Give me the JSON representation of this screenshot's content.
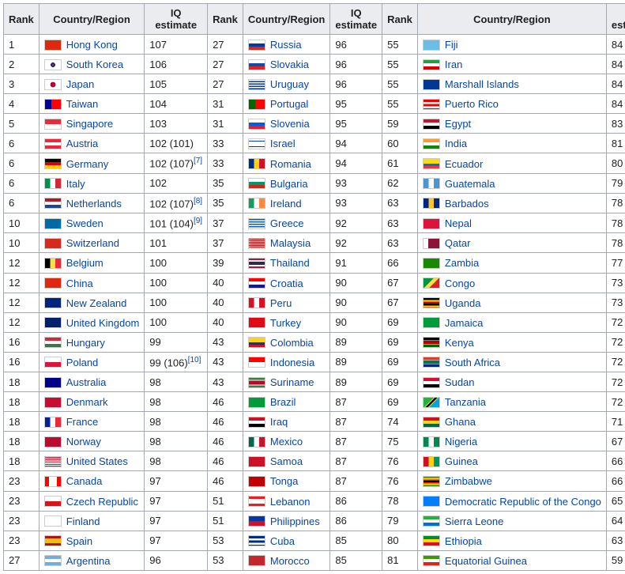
{
  "headers": {
    "rank": "Rank",
    "country": "Country/Region",
    "iq": "IQ estimate"
  },
  "link_color": "#0645ad",
  "border_color": "#a2a9b1",
  "header_bg": "#eaecf0",
  "cell_bg": "#ffffff",
  "columns": [
    [
      {
        "rank": "1",
        "country": "Hong Kong",
        "iq": "107",
        "ref": "",
        "flag": "linear-gradient(#de2910,#de2910)"
      },
      {
        "rank": "2",
        "country": "South Korea",
        "iq": "106",
        "ref": "",
        "flag": "radial-gradient(circle at 50% 50%, #c60c30 0 15%, #003478 15% 25%, #fff 25%)"
      },
      {
        "rank": "3",
        "country": "Japan",
        "iq": "105",
        "ref": "",
        "flag": "radial-gradient(circle at 50% 50%, #bc002d 0 28%, #fff 28%)"
      },
      {
        "rank": "4",
        "country": "Taiwan",
        "iq": "104",
        "ref": "",
        "flag": "linear-gradient(to right,#000095 0 40%,#fe0000 40%),linear-gradient(#fe0000,#fe0000)"
      },
      {
        "rank": "5",
        "country": "Singapore",
        "iq": "103",
        "ref": "",
        "flag": "linear-gradient(#ed2939 0 50%, #fff 50%)"
      },
      {
        "rank": "6",
        "country": "Austria",
        "iq": "102 (101)",
        "ref": "",
        "flag": "linear-gradient(#ed2939 0 33%, #fff 33% 66%, #ed2939 66%)"
      },
      {
        "rank": "6",
        "country": "Germany",
        "iq": "102 (107)",
        "ref": "[7]",
        "flag": "linear-gradient(#000 0 33%, #dd0000 33% 66%, #ffce00 66%)"
      },
      {
        "rank": "6",
        "country": "Italy",
        "iq": "102",
        "ref": "",
        "flag": "linear-gradient(to right,#009246 0 33%, #fff 33% 66%, #ce2b37 66%)"
      },
      {
        "rank": "6",
        "country": "Netherlands",
        "iq": "102 (107)",
        "ref": "[8]",
        "flag": "linear-gradient(#ae1c28 0 33%, #fff 33% 66%, #21468b 66%)"
      },
      {
        "rank": "10",
        "country": "Sweden",
        "iq": "101 (104)",
        "ref": "[9]",
        "flag": "linear-gradient(#006aa7,#006aa7)"
      },
      {
        "rank": "10",
        "country": "Switzerland",
        "iq": "101",
        "ref": "",
        "flag": "linear-gradient(#d52b1e,#d52b1e)"
      },
      {
        "rank": "12",
        "country": "Belgium",
        "iq": "100",
        "ref": "",
        "flag": "linear-gradient(to right,#000 0 33%, #fae042 33% 66%, #ed2939 66%)"
      },
      {
        "rank": "12",
        "country": "China",
        "iq": "100",
        "ref": "",
        "flag": "linear-gradient(#de2910,#de2910)"
      },
      {
        "rank": "12",
        "country": "New Zealand",
        "iq": "100",
        "ref": "",
        "flag": "linear-gradient(#00247d,#00247d)"
      },
      {
        "rank": "12",
        "country": "United Kingdom",
        "iq": "100",
        "ref": "",
        "flag": "linear-gradient(#012169,#012169)"
      },
      {
        "rank": "16",
        "country": "Hungary",
        "iq": "99",
        "ref": "",
        "flag": "linear-gradient(#cd2a3e 0 33%, #fff 33% 66%, #436f4d 66%)"
      },
      {
        "rank": "16",
        "country": "Poland",
        "iq": "99 (106)",
        "ref": "[10]",
        "flag": "linear-gradient(#fff 0 50%, #dc143c 50%)"
      },
      {
        "rank": "18",
        "country": "Australia",
        "iq": "98",
        "ref": "",
        "flag": "linear-gradient(#00008b,#00008b)"
      },
      {
        "rank": "18",
        "country": "Denmark",
        "iq": "98",
        "ref": "",
        "flag": "linear-gradient(#c60c30,#c60c30)"
      },
      {
        "rank": "18",
        "country": "France",
        "iq": "98",
        "ref": "",
        "flag": "linear-gradient(to right,#002395 0 33%, #fff 33% 66%, #ed2939 66%)"
      },
      {
        "rank": "18",
        "country": "Norway",
        "iq": "98",
        "ref": "",
        "flag": "linear-gradient(#ba0c2f,#ba0c2f)"
      },
      {
        "rank": "18",
        "country": "United States",
        "iq": "98",
        "ref": "",
        "flag": "repeating-linear-gradient(#b22234 0 1.1px,#fff 1.1px 2.2px)"
      },
      {
        "rank": "23",
        "country": "Canada",
        "iq": "97",
        "ref": "",
        "flag": "linear-gradient(to right,#ff0000 0 25%,#fff 25% 75%,#ff0000 75%)"
      },
      {
        "rank": "23",
        "country": "Czech Republic",
        "iq": "97",
        "ref": "",
        "flag": "linear-gradient(#fff 0 50%,#d7141a 50%)"
      },
      {
        "rank": "23",
        "country": "Finland",
        "iq": "97",
        "ref": "",
        "flag": "linear-gradient(#fff,#fff)"
      },
      {
        "rank": "23",
        "country": "Spain",
        "iq": "97",
        "ref": "",
        "flag": "linear-gradient(#aa151b 0 25%,#f1bf00 25% 75%,#aa151b 75%)"
      },
      {
        "rank": "27",
        "country": "Argentina",
        "iq": "96",
        "ref": "",
        "flag": "linear-gradient(#74acdf 0 33%,#fff 33% 66%,#74acdf 66%)"
      }
    ],
    [
      {
        "rank": "27",
        "country": "Russia",
        "iq": "96",
        "ref": "",
        "flag": "linear-gradient(#fff 0 33%,#0039a6 33% 66%,#d52b1e 66%)"
      },
      {
        "rank": "27",
        "country": "Slovakia",
        "iq": "96",
        "ref": "",
        "flag": "linear-gradient(#fff 0 33%,#0b4ea2 33% 66%,#ee1c25 66%)"
      },
      {
        "rank": "27",
        "country": "Uruguay",
        "iq": "96",
        "ref": "",
        "flag": "repeating-linear-gradient(#fff 0 1.5px,#0038a8 1.5px 3px)"
      },
      {
        "rank": "31",
        "country": "Portugal",
        "iq": "95",
        "ref": "",
        "flag": "linear-gradient(to right,#006600 0 40%,#ff0000 40%)"
      },
      {
        "rank": "31",
        "country": "Slovenia",
        "iq": "95",
        "ref": "",
        "flag": "linear-gradient(#fff 0 33%,#005ce5 33% 66%,#ed1c24 66%)"
      },
      {
        "rank": "33",
        "country": "Israel",
        "iq": "94",
        "ref": "",
        "flag": "linear-gradient(#fff 0 15%,#0038b8 15% 25%,#fff 25% 75%,#0038b8 75% 85%,#fff 85%)"
      },
      {
        "rank": "33",
        "country": "Romania",
        "iq": "94",
        "ref": "",
        "flag": "linear-gradient(to right,#002b7f 0 33%,#fcd116 33% 66%,#ce1126 66%)"
      },
      {
        "rank": "35",
        "country": "Bulgaria",
        "iq": "93",
        "ref": "",
        "flag": "linear-gradient(#fff 0 33%,#00966e 33% 66%,#d62612 66%)"
      },
      {
        "rank": "35",
        "country": "Ireland",
        "iq": "93",
        "ref": "",
        "flag": "linear-gradient(to right,#169b62 0 33%,#fff 33% 66%,#ff883e 66%)"
      },
      {
        "rank": "37",
        "country": "Greece",
        "iq": "92",
        "ref": "",
        "flag": "repeating-linear-gradient(#0d5eaf 0 1.5px,#fff 1.5px 3px)"
      },
      {
        "rank": "37",
        "country": "Malaysia",
        "iq": "92",
        "ref": "",
        "flag": "repeating-linear-gradient(#cc0001 0 1px,#fff 1px 2px)"
      },
      {
        "rank": "39",
        "country": "Thailand",
        "iq": "91",
        "ref": "",
        "flag": "linear-gradient(#a51931 0 17%,#f4f5f8 17% 33%,#2d2a4a 33% 67%,#f4f5f8 67% 83%,#a51931 83%)"
      },
      {
        "rank": "40",
        "country": "Croatia",
        "iq": "90",
        "ref": "",
        "flag": "linear-gradient(#ff0000 0 33%,#fff 33% 66%,#171796 66%)"
      },
      {
        "rank": "40",
        "country": "Peru",
        "iq": "90",
        "ref": "",
        "flag": "linear-gradient(to right,#d91023 0 33%,#fff 33% 66%,#d91023 66%)"
      },
      {
        "rank": "40",
        "country": "Turkey",
        "iq": "90",
        "ref": "",
        "flag": "linear-gradient(#e30a17,#e30a17)"
      },
      {
        "rank": "43",
        "country": "Colombia",
        "iq": "89",
        "ref": "",
        "flag": "linear-gradient(#fcd116 0 50%,#003893 50% 75%,#ce1126 75%)"
      },
      {
        "rank": "43",
        "country": "Indonesia",
        "iq": "89",
        "ref": "",
        "flag": "linear-gradient(#ff0000 0 50%,#fff 50%)"
      },
      {
        "rank": "43",
        "country": "Suriname",
        "iq": "89",
        "ref": "",
        "flag": "linear-gradient(#377e3f 0 20%,#fff 20% 30%,#b40a2d 30% 70%,#fff 70% 80%,#377e3f 80%)"
      },
      {
        "rank": "46",
        "country": "Brazil",
        "iq": "87",
        "ref": "",
        "flag": "linear-gradient(#009b3a,#009b3a)"
      },
      {
        "rank": "46",
        "country": "Iraq",
        "iq": "87",
        "ref": "",
        "flag": "linear-gradient(#ce1126 0 33%,#fff 33% 66%,#000 66%)"
      },
      {
        "rank": "46",
        "country": "Mexico",
        "iq": "87",
        "ref": "",
        "flag": "linear-gradient(to right,#006847 0 33%,#fff 33% 66%,#ce1126 66%)"
      },
      {
        "rank": "46",
        "country": "Samoa",
        "iq": "87",
        "ref": "",
        "flag": "linear-gradient(#ce1126,#ce1126)"
      },
      {
        "rank": "46",
        "country": "Tonga",
        "iq": "87",
        "ref": "",
        "flag": "linear-gradient(#c10000,#c10000)"
      },
      {
        "rank": "51",
        "country": "Lebanon",
        "iq": "86",
        "ref": "",
        "flag": "linear-gradient(#ed1c24 0 25%,#fff 25% 75%,#ed1c24 75%)"
      },
      {
        "rank": "51",
        "country": "Philippines",
        "iq": "86",
        "ref": "",
        "flag": "linear-gradient(#0038a8 0 50%,#ce1126 50%)"
      },
      {
        "rank": "53",
        "country": "Cuba",
        "iq": "85",
        "ref": "",
        "flag": "repeating-linear-gradient(#002a8f 0 2.8px,#fff 2.8px 5.6px)"
      },
      {
        "rank": "53",
        "country": "Morocco",
        "iq": "85",
        "ref": "",
        "flag": "linear-gradient(#c1272d,#c1272d)"
      }
    ],
    [
      {
        "rank": "55",
        "country": "Fiji",
        "iq": "84",
        "ref": "",
        "flag": "linear-gradient(#68bfe5,#68bfe5)"
      },
      {
        "rank": "55",
        "country": "Iran",
        "iq": "84",
        "ref": "",
        "flag": "linear-gradient(#239f40 0 33%,#fff 33% 66%,#da0000 66%)"
      },
      {
        "rank": "55",
        "country": "Marshall Islands",
        "iq": "84",
        "ref": "",
        "flag": "linear-gradient(#003893,#003893)"
      },
      {
        "rank": "55",
        "country": "Puerto Rico",
        "iq": "84",
        "ref": "",
        "flag": "repeating-linear-gradient(#ed0000 0 2.8px,#fff 2.8px 5.6px)"
      },
      {
        "rank": "59",
        "country": "Egypt",
        "iq": "83",
        "ref": "",
        "flag": "linear-gradient(#ce1126 0 33%,#fff 33% 66%,#000 66%)"
      },
      {
        "rank": "60",
        "country": "India",
        "iq": "81",
        "ref": "",
        "flag": "linear-gradient(#ff9933 0 33%,#fff 33% 66%,#138808 66%)"
      },
      {
        "rank": "61",
        "country": "Ecuador",
        "iq": "80",
        "ref": "",
        "flag": "linear-gradient(#ffdd00 0 50%,#0072ce 50% 75%,#ef3340 75%)"
      },
      {
        "rank": "62",
        "country": "Guatemala",
        "iq": "79",
        "ref": "",
        "flag": "linear-gradient(to right,#4997d0 0 33%,#fff 33% 66%,#4997d0 66%)"
      },
      {
        "rank": "63",
        "country": "Barbados",
        "iq": "78",
        "ref": "",
        "flag": "linear-gradient(to right,#00267f 0 33%,#ffc726 33% 66%,#00267f 66%)"
      },
      {
        "rank": "63",
        "country": "Nepal",
        "iq": "78",
        "ref": "",
        "flag": "linear-gradient(#dc143c,#dc143c)"
      },
      {
        "rank": "63",
        "country": "Qatar",
        "iq": "78",
        "ref": "",
        "flag": "linear-gradient(to right,#fff 0 30%,#8a1538 30%)"
      },
      {
        "rank": "66",
        "country": "Zambia",
        "iq": "77",
        "ref": "",
        "flag": "linear-gradient(#198a00,#198a00)"
      },
      {
        "rank": "67",
        "country": "Congo",
        "iq": "73",
        "ref": "",
        "flag": "linear-gradient(135deg,#009543 0 40%,#fbde4a 40% 60%,#dc241f 60%)"
      },
      {
        "rank": "67",
        "country": "Uganda",
        "iq": "73",
        "ref": "",
        "flag": "repeating-linear-gradient(#000 0 2.3px,#fcdc04 2.3px 4.6px,#d90000 4.6px 7px)"
      },
      {
        "rank": "69",
        "country": "Jamaica",
        "iq": "72",
        "ref": "",
        "flag": "linear-gradient(#009b3a,#009b3a)"
      },
      {
        "rank": "69",
        "country": "Kenya",
        "iq": "72",
        "ref": "",
        "flag": "linear-gradient(#000 0 30%,#fff 30% 35%,#bb0000 35% 65%,#fff 65% 70%,#006600 70%)"
      },
      {
        "rank": "69",
        "country": "South Africa",
        "iq": "72",
        "ref": "",
        "flag": "linear-gradient(#de3831 0 30%,#fff 30% 35%,#007a4d 35% 65%,#fff 65% 70%,#002395 70%)"
      },
      {
        "rank": "69",
        "country": "Sudan",
        "iq": "72",
        "ref": "",
        "flag": "linear-gradient(#d21034 0 33%,#fff 33% 66%,#000 66%)"
      },
      {
        "rank": "69",
        "country": "Tanzania",
        "iq": "72",
        "ref": "",
        "flag": "linear-gradient(135deg,#1eb53a 0 40%,#fcd116 40% 45%,#000 45% 55%,#fcd116 55% 60%,#00a3dd 60%)"
      },
      {
        "rank": "74",
        "country": "Ghana",
        "iq": "71",
        "ref": "",
        "flag": "linear-gradient(#ce1126 0 33%,#fcd116 33% 66%,#006b3f 66%)"
      },
      {
        "rank": "75",
        "country": "Nigeria",
        "iq": "67",
        "ref": "",
        "flag": "linear-gradient(to right,#008751 0 33%,#fff 33% 66%,#008751 66%)"
      },
      {
        "rank": "76",
        "country": "Guinea",
        "iq": "66",
        "ref": "",
        "flag": "linear-gradient(to right,#ce1126 0 33%,#fcd116 33% 66%,#009460 66%)"
      },
      {
        "rank": "76",
        "country": "Zimbabwe",
        "iq": "66",
        "ref": "",
        "flag": "linear-gradient(#319208 0 14%,#ffd200 14% 28%,#de2010 28% 42%,#000 42% 58%,#de2010 58% 72%,#ffd200 72% 86%,#319208 86%)"
      },
      {
        "rank": "78",
        "country": "Democratic Republic of the Congo",
        "iq": "65",
        "ref": "",
        "flag": "linear-gradient(#007fff,#007fff)"
      },
      {
        "rank": "79",
        "country": "Sierra Leone",
        "iq": "64",
        "ref": "",
        "flag": "linear-gradient(#1eb53a 0 33%,#fff 33% 66%,#0072c6 66%)"
      },
      {
        "rank": "80",
        "country": "Ethiopia",
        "iq": "63",
        "ref": "",
        "flag": "linear-gradient(#078930 0 33%,#fcdd09 33% 66%,#da121a 66%)"
      },
      {
        "rank": "81",
        "country": "Equatorial Guinea",
        "iq": "59",
        "ref": "",
        "flag": "linear-gradient(#3e9a00 0 33%,#fff 33% 66%,#e32118 66%)"
      }
    ]
  ]
}
